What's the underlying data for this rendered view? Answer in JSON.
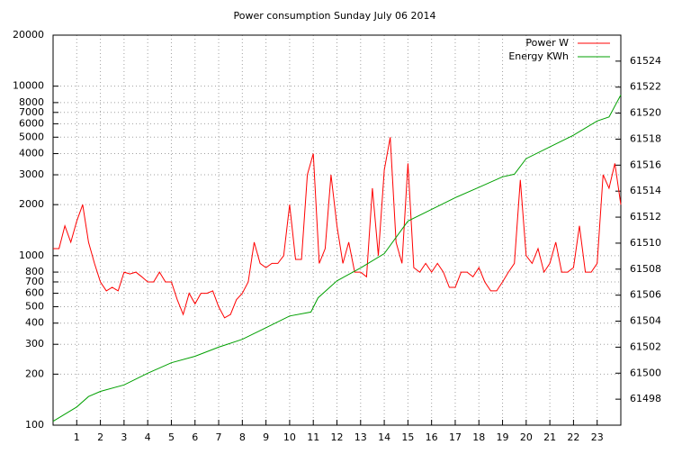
{
  "chart_data": {
    "type": "line",
    "title": "Power consumption Sunday July 06 2014",
    "xlim": [
      0,
      24
    ],
    "xticks": [
      1,
      2,
      3,
      4,
      5,
      6,
      7,
      8,
      9,
      10,
      11,
      12,
      13,
      14,
      15,
      16,
      17,
      18,
      19,
      20,
      21,
      22,
      23
    ],
    "ylim": [
      100,
      20000
    ],
    "log_scale": true,
    "yticks": [
      100,
      200,
      300,
      400,
      500,
      600,
      700,
      800,
      1000,
      2000,
      3000,
      4000,
      5000,
      6000,
      7000,
      8000,
      10000,
      20000
    ],
    "y2lim": [
      61496,
      61526
    ],
    "y2ticks": [
      61498,
      61500,
      61502,
      61504,
      61506,
      61508,
      61510,
      61512,
      61514,
      61516,
      61518,
      61520,
      61522,
      61524
    ],
    "grid": true,
    "legend": "top-right",
    "series": [
      {
        "name": "Power W",
        "color": "#ff0000",
        "x": [
          0,
          0.25,
          0.5,
          0.75,
          1,
          1.25,
          1.5,
          1.75,
          2,
          2.25,
          2.5,
          2.75,
          3,
          3.25,
          3.5,
          3.75,
          4,
          4.25,
          4.5,
          4.75,
          5,
          5.25,
          5.5,
          5.75,
          6,
          6.25,
          6.5,
          6.75,
          7,
          7.25,
          7.5,
          7.75,
          8,
          8.25,
          8.5,
          8.75,
          9,
          9.25,
          9.5,
          9.75,
          10,
          10.25,
          10.5,
          10.75,
          11,
          11.25,
          11.5,
          11.75,
          12,
          12.25,
          12.5,
          12.75,
          13,
          13.25,
          13.5,
          13.75,
          14,
          14.25,
          14.5,
          14.75,
          15,
          15.25,
          15.5,
          15.75,
          16,
          16.25,
          16.5,
          16.75,
          17,
          17.25,
          17.5,
          17.75,
          18,
          18.25,
          18.5,
          18.75,
          19,
          19.25,
          19.5,
          19.75,
          20,
          20.25,
          20.5,
          20.75,
          21,
          21.25,
          21.5,
          21.75,
          22,
          22.25,
          22.5,
          22.75,
          23,
          23.25,
          23.5,
          23.75,
          24
        ],
        "values": [
          1100,
          1100,
          1500,
          1200,
          1600,
          2000,
          1200,
          900,
          700,
          620,
          650,
          620,
          800,
          780,
          800,
          750,
          700,
          700,
          800,
          700,
          700,
          550,
          450,
          600,
          520,
          600,
          600,
          620,
          500,
          430,
          450,
          550,
          600,
          700,
          1200,
          900,
          850,
          900,
          900,
          1000,
          2000,
          950,
          950,
          3000,
          4000,
          900,
          1100,
          3000,
          1500,
          900,
          1200,
          800,
          800,
          750,
          2500,
          1000,
          3200,
          5000,
          1200,
          900,
          3500,
          850,
          800,
          900,
          800,
          900,
          800,
          650,
          650,
          800,
          800,
          750,
          850,
          700,
          620,
          620,
          700,
          800,
          900,
          2800,
          1000,
          900,
          1100,
          800,
          900,
          1200,
          800,
          800,
          850,
          1500,
          800,
          800,
          900,
          3000,
          2500,
          3500,
          2000
        ]
      },
      {
        "name": "Energy KWh",
        "color": "#00a000",
        "axis": "y2",
        "x": [
          0,
          1,
          1.5,
          2,
          3,
          4,
          5,
          6,
          7,
          8,
          9,
          10,
          10.9,
          11.2,
          12,
          13,
          14,
          15,
          16,
          17,
          18,
          19,
          19.5,
          20,
          21,
          22,
          23,
          23.5,
          24
        ],
        "values": [
          61496.3,
          61497.4,
          61498.2,
          61498.6,
          61499.1,
          61500,
          61500.8,
          61501.3,
          61502,
          61502.6,
          61503.5,
          61504.4,
          61504.7,
          61505.8,
          61507.1,
          61508.1,
          61509.2,
          61511.7,
          61512.6,
          61513.5,
          61514.3,
          61515.1,
          61515.3,
          61516.5,
          61517.4,
          61518.3,
          61519.4,
          61519.7,
          61521.4
        ]
      }
    ]
  }
}
